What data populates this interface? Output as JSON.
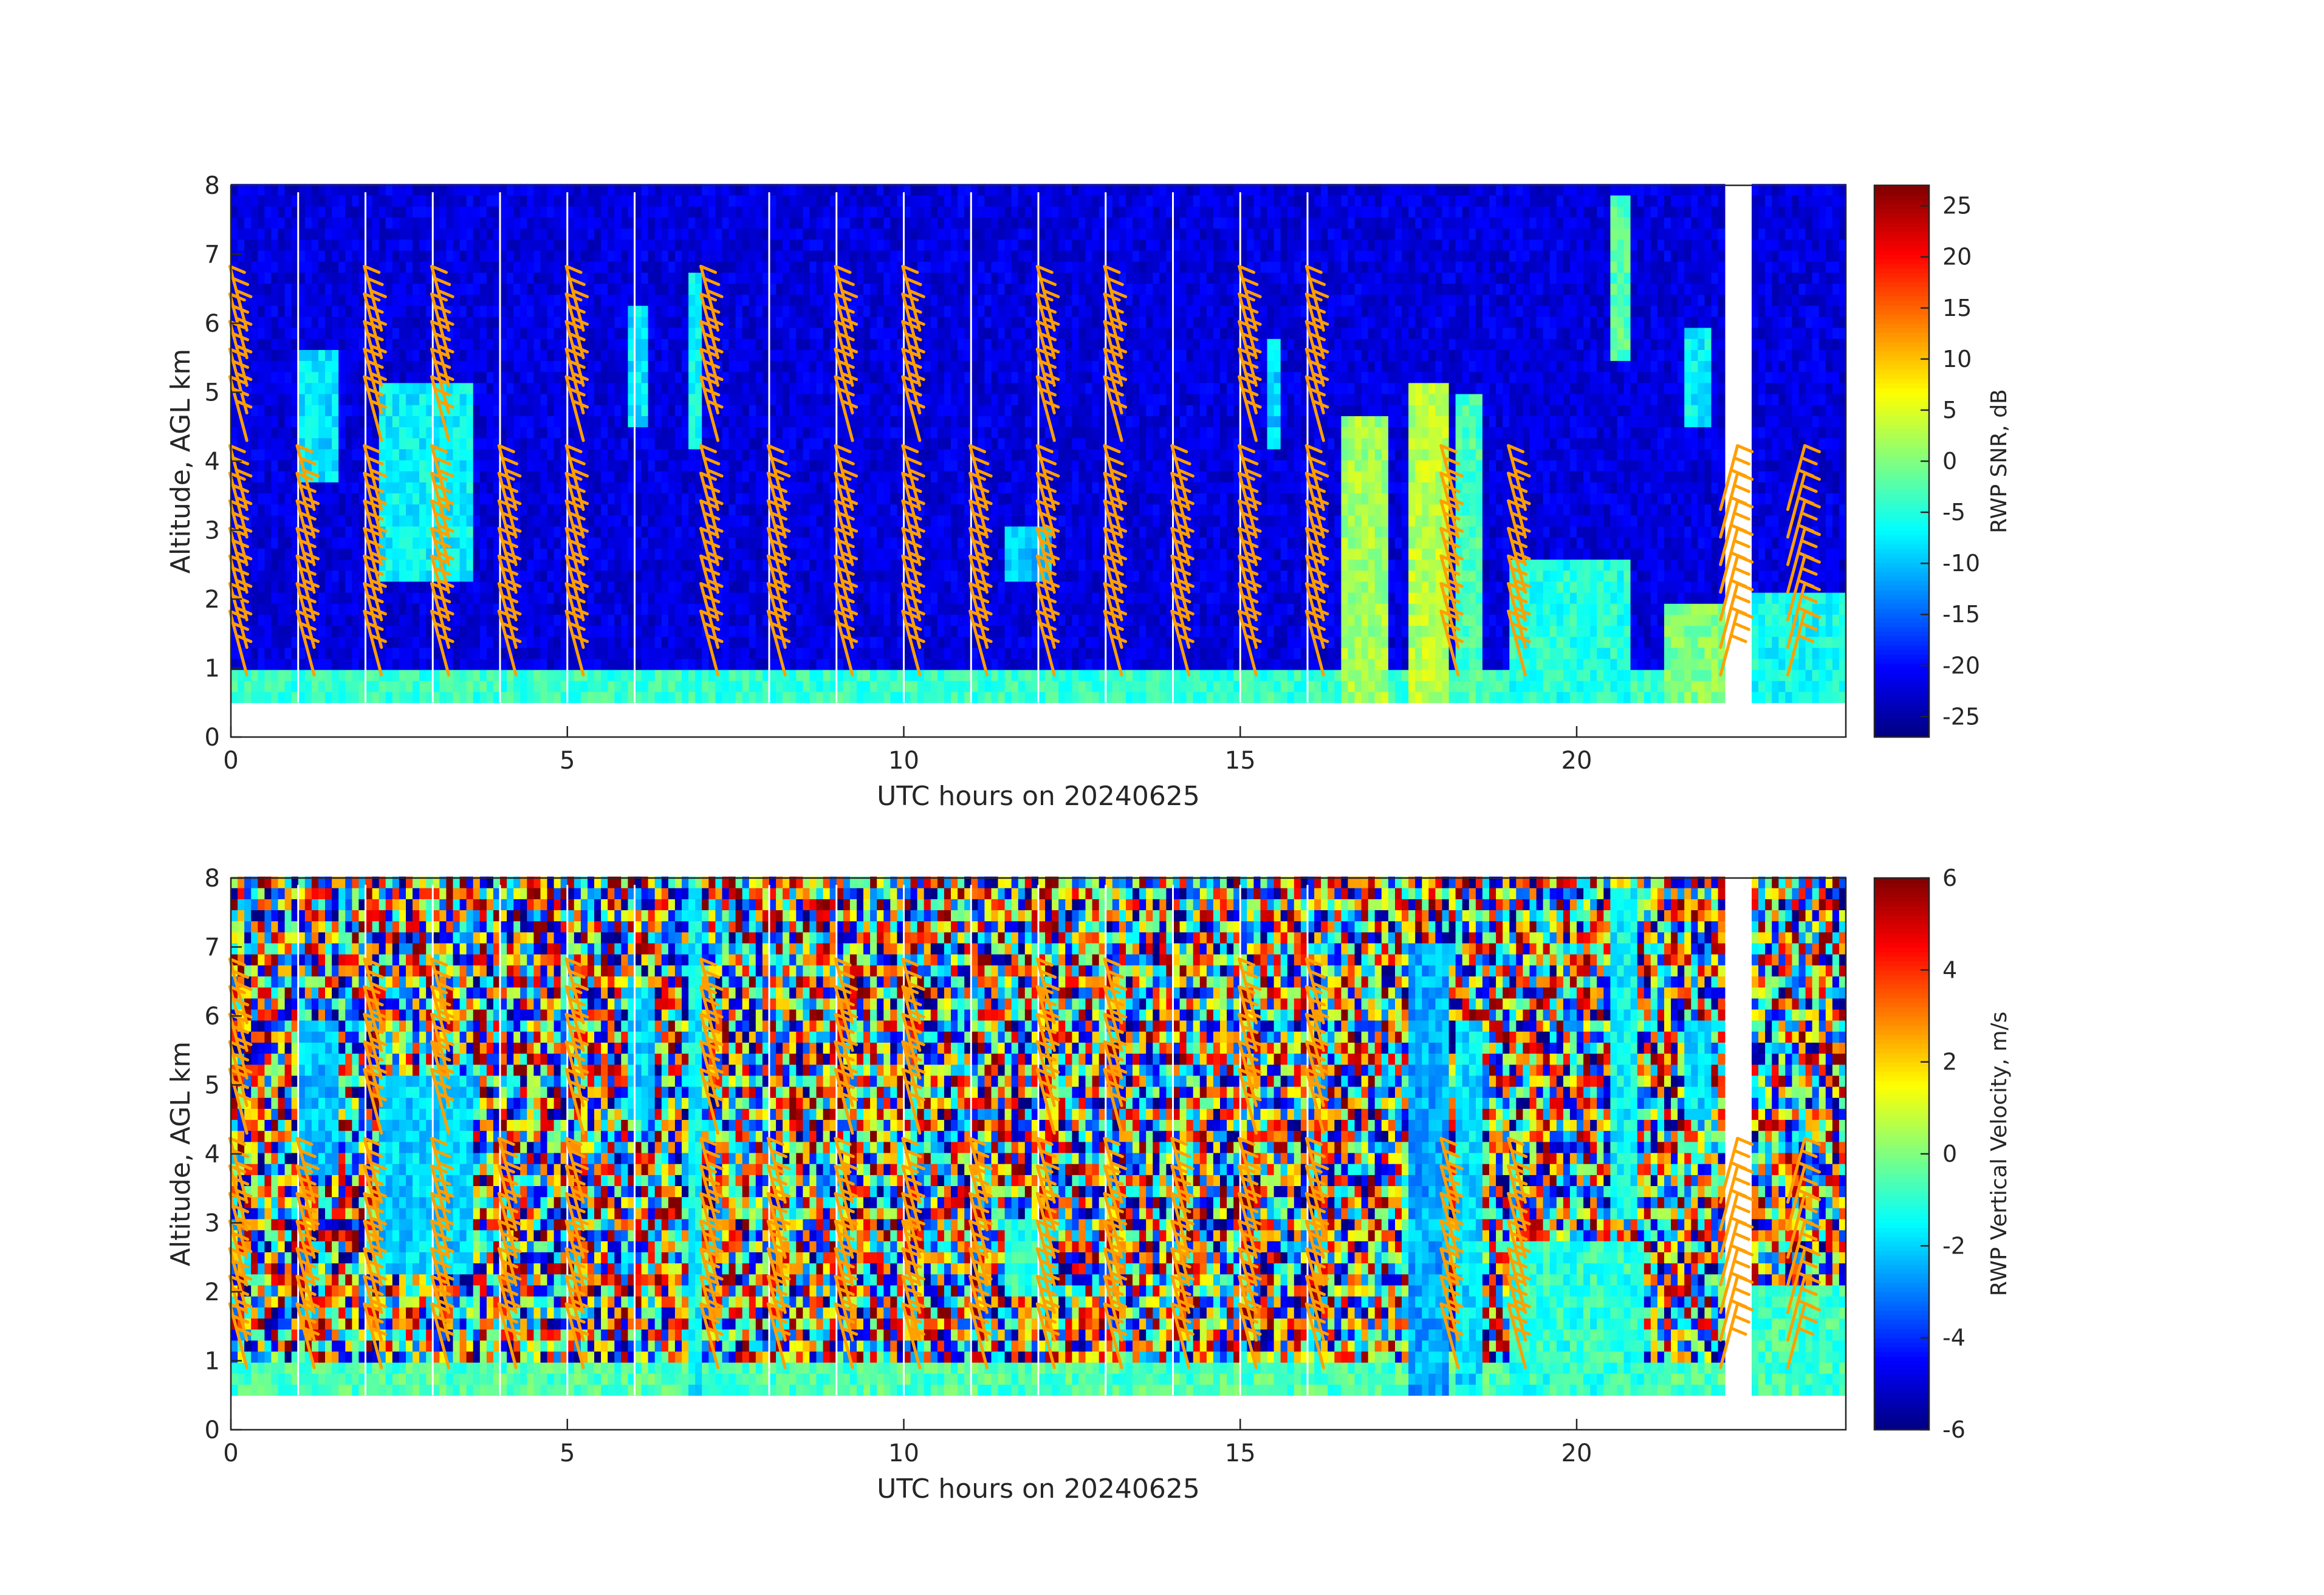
{
  "chart_data": [
    {
      "type": "heatmap",
      "xlabel": "UTC hours on 20240625",
      "ylabel": "Altitude, AGL km",
      "colorbar_label": "RWP SNR, dB",
      "xlim": [
        0,
        24
      ],
      "ylim": [
        0,
        8
      ],
      "xticks": [
        0,
        5,
        10,
        15,
        20
      ],
      "yticks": [
        0,
        1,
        2,
        3,
        4,
        5,
        6,
        7,
        8
      ],
      "colorbar_range": [
        -27,
        27
      ],
      "colorbar_ticks": [
        -25,
        -20,
        -15,
        -10,
        -5,
        0,
        5,
        10,
        15,
        20,
        25
      ],
      "colormap": "jet",
      "data_top_km": 7.9,
      "data_bottom_km": 0.5,
      "gap_hours": [
        22.35
      ],
      "features": [
        {
          "kind": "surface_layer",
          "x0": 0,
          "x1": 24,
          "y0": 0.5,
          "y1": 1.0,
          "value": -4
        },
        {
          "kind": "cloud",
          "x0": 1.0,
          "x1": 1.6,
          "y0": 3.7,
          "y1": 5.6,
          "value": -8
        },
        {
          "kind": "cloud",
          "x0": 2.2,
          "x1": 3.6,
          "y0": 2.2,
          "y1": 5.2,
          "value": -7
        },
        {
          "kind": "cloud",
          "x0": 5.9,
          "x1": 6.2,
          "y0": 4.5,
          "y1": 6.3,
          "value": -8
        },
        {
          "kind": "cloud",
          "x0": 6.8,
          "x1": 7.0,
          "y0": 4.2,
          "y1": 6.8,
          "value": -6
        },
        {
          "kind": "cloud",
          "x0": 11.5,
          "x1": 12.2,
          "y0": 2.2,
          "y1": 3.0,
          "value": -10
        },
        {
          "kind": "cloud",
          "x0": 15.4,
          "x1": 15.6,
          "y0": 4.2,
          "y1": 5.8,
          "value": -9
        },
        {
          "kind": "convection",
          "x0": 16.5,
          "x1": 17.2,
          "y0": 0.5,
          "y1": 4.6,
          "value": 2
        },
        {
          "kind": "convection",
          "x0": 17.5,
          "x1": 18.1,
          "y0": 0.5,
          "y1": 5.2,
          "value": 3
        },
        {
          "kind": "convection",
          "x0": 18.2,
          "x1": 18.6,
          "y0": 0.5,
          "y1": 5.0,
          "value": -3
        },
        {
          "kind": "convection",
          "x0": 19.0,
          "x1": 20.8,
          "y0": 0.5,
          "y1": 2.6,
          "value": -5
        },
        {
          "kind": "cloud",
          "x0": 20.5,
          "x1": 20.8,
          "y0": 5.5,
          "y1": 7.9,
          "value": -2
        },
        {
          "kind": "cloud",
          "x0": 21.6,
          "x1": 22.0,
          "y0": 4.5,
          "y1": 6.0,
          "value": -7
        },
        {
          "kind": "cloud",
          "x0": 21.3,
          "x1": 22.2,
          "y0": 0.5,
          "y1": 2.0,
          "value": 0
        },
        {
          "kind": "cloud",
          "x0": 22.6,
          "x1": 24.0,
          "y0": 0.5,
          "y1": 2.1,
          "value": -6
        }
      ]
    },
    {
      "type": "heatmap",
      "xlabel": "UTC hours on 20240625",
      "ylabel": "Altitude, AGL km",
      "colorbar_label": "RWP Vertical Velocity, m/s",
      "xlim": [
        0,
        24
      ],
      "ylim": [
        0,
        8
      ],
      "xticks": [
        0,
        5,
        10,
        15,
        20
      ],
      "yticks": [
        0,
        1,
        2,
        3,
        4,
        5,
        6,
        7,
        8
      ],
      "colorbar_range": [
        -6,
        6
      ],
      "colorbar_ticks": [
        -6,
        -4,
        -2,
        0,
        2,
        4,
        6
      ],
      "colormap": "jet",
      "data_top_km": 7.9,
      "data_bottom_km": 0.5,
      "gap_hours": [
        22.35
      ],
      "features": [
        {
          "kind": "surface_layer",
          "x0": 0,
          "x1": 24,
          "y0": 0.5,
          "y1": 1.0,
          "value": -0.6
        },
        {
          "kind": "cloud",
          "x0": 1.0,
          "x1": 1.6,
          "y0": 3.7,
          "y1": 6.0,
          "value": -2.2
        },
        {
          "kind": "cloud",
          "x0": 2.2,
          "x1": 3.6,
          "y0": 2.2,
          "y1": 5.2,
          "value": -2.0
        },
        {
          "kind": "cloud",
          "x0": 5.9,
          "x1": 6.3,
          "y0": 4.5,
          "y1": 6.5,
          "value": -2.0
        },
        {
          "kind": "cloud",
          "x0": 6.8,
          "x1": 7.0,
          "y0": 0.5,
          "y1": 7.9,
          "value": -1.5
        },
        {
          "kind": "cloud",
          "x0": 11.5,
          "x1": 12.2,
          "y0": 2.0,
          "y1": 3.0,
          "value": -1.0
        },
        {
          "kind": "convection",
          "x0": 17.5,
          "x1": 18.1,
          "y0": 0.5,
          "y1": 7.0,
          "value": -2.5
        },
        {
          "kind": "convection",
          "x0": 18.2,
          "x1": 18.6,
          "y0": 0.5,
          "y1": 6.0,
          "value": -1.8
        },
        {
          "kind": "convection",
          "x0": 19.0,
          "x1": 21.0,
          "y0": 0.5,
          "y1": 2.8,
          "value": -1.0
        },
        {
          "kind": "cloud",
          "x0": 20.5,
          "x1": 20.9,
          "y0": 3.0,
          "y1": 7.9,
          "value": -1.5
        },
        {
          "kind": "cloud",
          "x0": 21.6,
          "x1": 22.0,
          "y0": 4.5,
          "y1": 6.0,
          "value": -1.8
        },
        {
          "kind": "cloud",
          "x0": 22.6,
          "x1": 24.0,
          "y0": 0.5,
          "y1": 2.1,
          "value": -0.8
        }
      ]
    }
  ],
  "wind_barbs": {
    "color": "#ff9f00",
    "times": [
      0.4,
      1.4,
      2.4,
      3.4,
      4.4,
      5.4,
      7.4,
      8.4,
      9.4,
      10.4,
      11.4,
      12.4,
      13.4,
      14.4,
      15.4,
      16.4,
      18.4,
      19.4,
      22.3,
      23.3
    ],
    "altitudes_km": [
      0.9,
      1.3,
      1.7,
      2.1,
      2.5,
      2.9,
      3.3,
      4.3,
      4.7,
      5.1,
      5.5,
      5.9
    ]
  }
}
